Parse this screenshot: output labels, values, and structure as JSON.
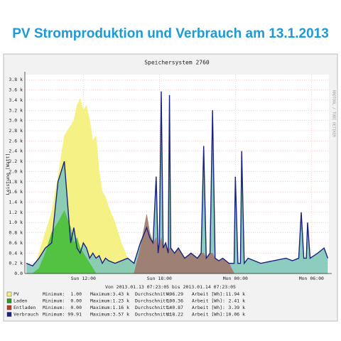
{
  "chart_data": {
    "type": "area",
    "title": "PV Stromproduktion und Verbrauch am 13.1.2013",
    "subtitle": "Speichersystem 2760",
    "y_label": "Leistung [Watt]",
    "side_note": "RRDTOOL / TOBI OETIKER",
    "period": "Von 2013.01.13 07:23:05 bis 2013.01.14 07:23:05",
    "x": [
      7.5,
      8,
      8.5,
      9,
      9.5,
      10,
      10.5,
      11,
      11.25,
      11.5,
      11.75,
      12,
      12.25,
      12.5,
      12.75,
      13,
      13.25,
      13.5,
      13.75,
      14,
      14.5,
      15,
      15.5,
      16,
      16.5,
      17,
      17.25,
      17.5,
      17.75,
      17.9,
      18,
      18.15,
      18.3,
      18.5,
      18.7,
      18.8,
      18.9,
      19.2,
      19.5,
      20,
      20.5,
      21,
      21.3,
      21.5,
      21.7,
      22,
      22.2,
      22.4,
      22.7,
      23,
      23.5,
      23.9,
      24.0,
      24.2,
      24.4,
      24.5,
      24.7,
      25,
      26,
      27,
      28,
      28.5,
      29,
      29.2,
      29.4,
      29.6,
      29.7,
      29.9,
      30.5,
      31,
      31.3
    ],
    "series": [
      {
        "name": "PV",
        "color": "#f5f07a",
        "values": [
          1,
          20,
          400,
          800,
          1200,
          1900,
          2700,
          2900,
          3000,
          3300,
          3430,
          3200,
          3300,
          3000,
          2600,
          2700,
          2000,
          1600,
          1500,
          1300,
          1000,
          600,
          300,
          30,
          1,
          1,
          1,
          1,
          1,
          1,
          1,
          1,
          1,
          1,
          1,
          1,
          1,
          1,
          1,
          1,
          1,
          1,
          1,
          1,
          1,
          1,
          1,
          1,
          1,
          1,
          1,
          1,
          1,
          1,
          1,
          1,
          1,
          1,
          1,
          1,
          1,
          1,
          1,
          1,
          1,
          1,
          1,
          1,
          1,
          1,
          1
        ]
      },
      {
        "name": "Verbrauch",
        "color": "#1a237e",
        "fill": "#7fc8b8",
        "values": [
          200,
          150,
          300,
          500,
          600,
          1800,
          2200,
          600,
          900,
          500,
          400,
          600,
          500,
          300,
          400,
          300,
          350,
          200,
          300,
          250,
          200,
          250,
          300,
          200,
          600,
          900,
          700,
          600,
          1900,
          400,
          600,
          3570,
          500,
          600,
          400,
          3500,
          500,
          400,
          500,
          300,
          400,
          300,
          400,
          2500,
          300,
          400,
          3200,
          300,
          250,
          300,
          200,
          200,
          1900,
          200,
          200,
          2400,
          200,
          300,
          200,
          250,
          300,
          250,
          300,
          1200,
          300,
          300,
          1000,
          300,
          400,
          500,
          300
        ]
      },
      {
        "name": "Entladen",
        "color": "#a07a6e",
        "values": [
          0,
          0,
          0,
          0,
          0,
          0,
          0,
          0,
          0,
          0,
          0,
          0,
          0,
          0,
          0,
          0,
          0,
          0,
          0,
          0,
          0,
          0,
          0,
          0,
          500,
          1160,
          800,
          600,
          700,
          400,
          600,
          700,
          500,
          600,
          400,
          500,
          500,
          400,
          500,
          300,
          400,
          300,
          400,
          400,
          300,
          400,
          400,
          300,
          250,
          300,
          200,
          0,
          0,
          0,
          0,
          0,
          0,
          0,
          0,
          0,
          0,
          0,
          0,
          0,
          0,
          0,
          0,
          0,
          0,
          0,
          0
        ]
      },
      {
        "name": "Laden",
        "color": "#4fc23a",
        "values": [
          0,
          0,
          100,
          400,
          800,
          1000,
          1230,
          900,
          600,
          700,
          500,
          400,
          300,
          200,
          100,
          0,
          0,
          0,
          0,
          0,
          0,
          0,
          0,
          0,
          0,
          0,
          0,
          0,
          0,
          0,
          0,
          0,
          0,
          0,
          0,
          0,
          0,
          0,
          0,
          0,
          0,
          0,
          0,
          0,
          0,
          0,
          0,
          0,
          0,
          0,
          0,
          0,
          0,
          0,
          0,
          0,
          0,
          0,
          0,
          0,
          0,
          0,
          0,
          0,
          0,
          0,
          0,
          0,
          0,
          0,
          0
        ]
      }
    ],
    "legend_order": [
      0,
      3,
      2,
      1
    ],
    "legend_colors": [
      "#f5f07a",
      "#22a022",
      "#c0392b",
      "#1a237e"
    ],
    "stats": {
      "labels": [
        "Minimum:",
        "Maximum:",
        "Durchschnitt:",
        "Arbeit [Wh]:"
      ],
      "rows": [
        [
          "1.00",
          "3.43 k",
          "496.29",
          "11.94 k"
        ],
        [
          "0.00",
          "1.23 k",
          "100.36",
          "2.41 k"
        ],
        [
          "0.00",
          "1.16 k",
          "140.87",
          "3.39 k"
        ],
        [
          "99.91",
          "3.57 k",
          "418.22",
          "10.06 k"
        ]
      ]
    },
    "xlim": [
      7.3847,
      31.3847
    ],
    "xticks": [
      {
        "value": 12,
        "label": "Sun 12:00"
      },
      {
        "value": 18,
        "label": "Sun 18:00"
      },
      {
        "value": 24,
        "label": "Mon 00:00"
      },
      {
        "value": 30,
        "label": "Mon 06:00"
      }
    ],
    "ylim": [
      0,
      3900
    ],
    "yticks": [
      {
        "value": 0,
        "label": "0.0"
      },
      {
        "value": 200,
        "label": "0.2 k"
      },
      {
        "value": 400,
        "label": "0.4 k"
      },
      {
        "value": 600,
        "label": "0.6 k"
      },
      {
        "value": 800,
        "label": "0.8 k"
      },
      {
        "value": 1000,
        "label": "1.0 k"
      },
      {
        "value": 1200,
        "label": "1.2 k"
      },
      {
        "value": 1400,
        "label": "1.4 k"
      },
      {
        "value": 1600,
        "label": "1.6 k"
      },
      {
        "value": 1800,
        "label": "1.8 k"
      },
      {
        "value": 2000,
        "label": "2.0 k"
      },
      {
        "value": 2200,
        "label": "2.2 k"
      },
      {
        "value": 2400,
        "label": "2.4 k"
      },
      {
        "value": 2600,
        "label": "2.6 k"
      },
      {
        "value": 2800,
        "label": "2.8 k"
      },
      {
        "value": 3000,
        "label": "3.0 k"
      },
      {
        "value": 3200,
        "label": "3.2 k"
      },
      {
        "value": 3400,
        "label": "3.4 k"
      },
      {
        "value": 3600,
        "label": "3.6 k"
      },
      {
        "value": 3800,
        "label": "3.8 k"
      }
    ],
    "grid": true
  }
}
